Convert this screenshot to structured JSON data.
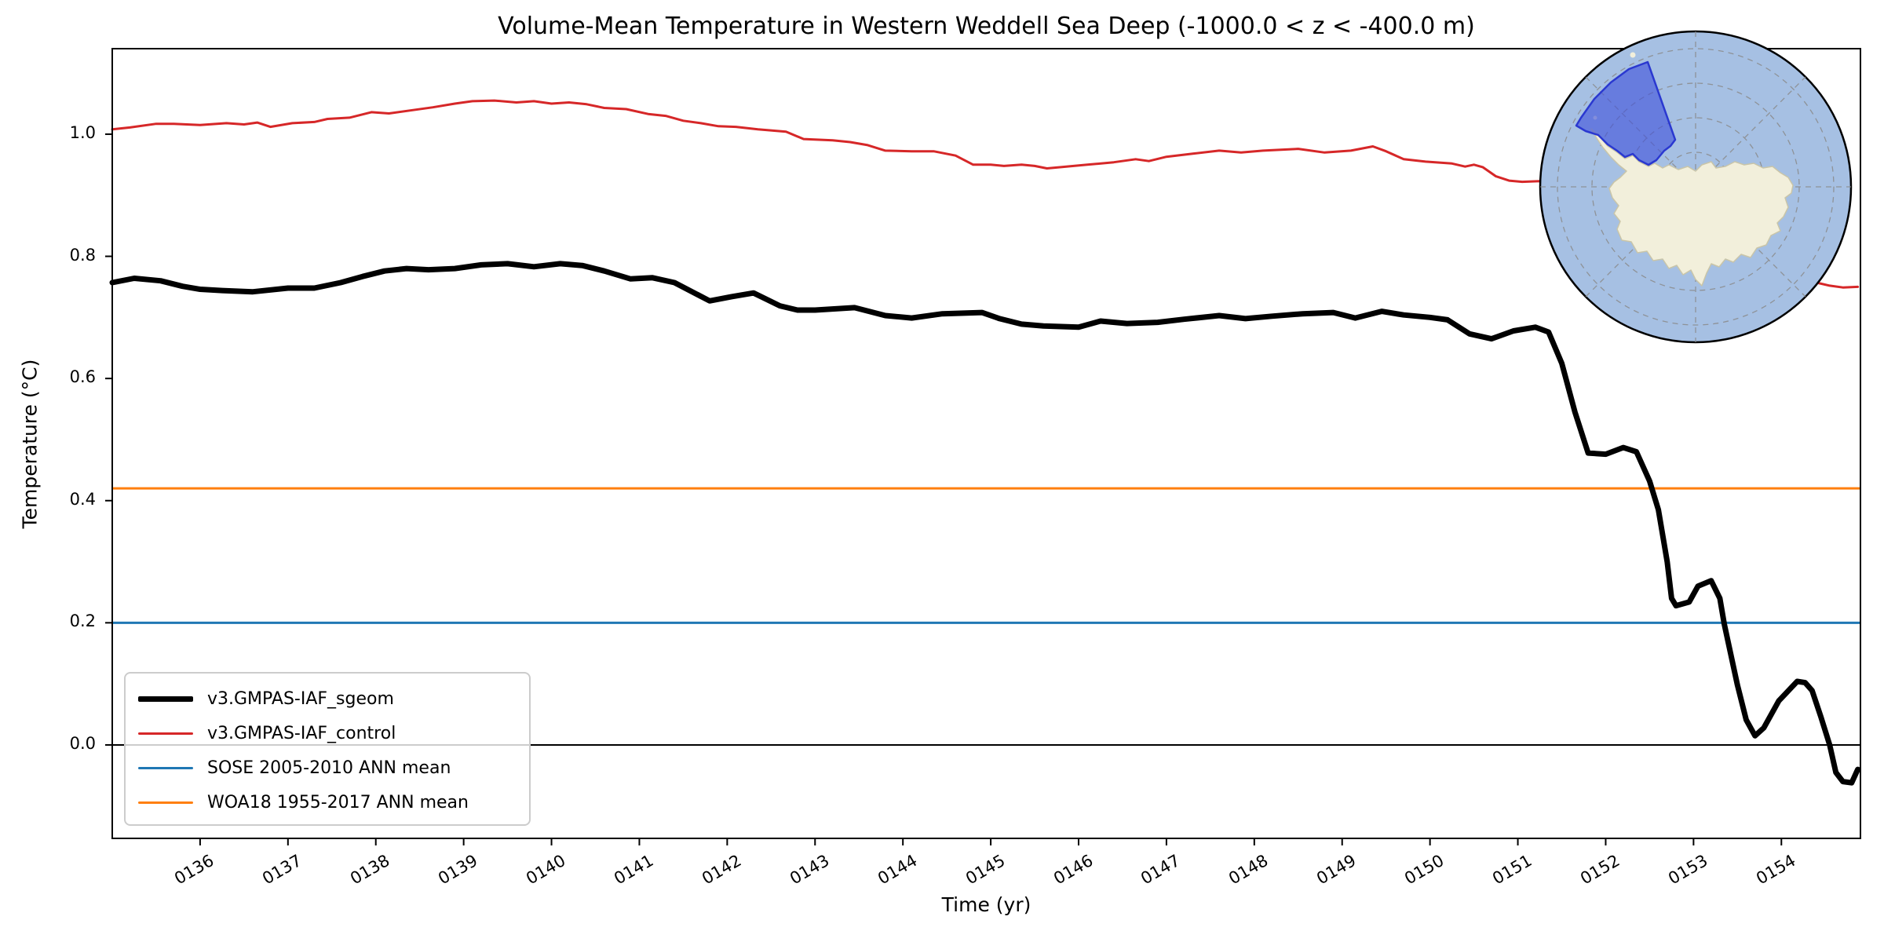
{
  "title": "Volume-Mean Temperature in Western Weddell Sea Deep (-1000.0 < z < -400.0 m)",
  "axes": {
    "xlabel": "Time (yr)",
    "ylabel": "Temperature (°C)",
    "xlim": [
      135.0,
      154.9
    ],
    "ylim": [
      -0.153,
      1.14
    ],
    "xtick_values": [
      136,
      137,
      138,
      139,
      140,
      141,
      142,
      143,
      144,
      145,
      146,
      147,
      148,
      149,
      150,
      151,
      152,
      153,
      154
    ],
    "xtick_labels": [
      "0136",
      "0137",
      "0138",
      "0139",
      "0140",
      "0141",
      "0142",
      "0143",
      "0144",
      "0145",
      "0146",
      "0147",
      "0148",
      "0149",
      "0150",
      "0151",
      "0152",
      "0153",
      "0154"
    ],
    "ytick_values": [
      0.0,
      0.2,
      0.4,
      0.6,
      0.8,
      1.0
    ],
    "ytick_labels": [
      "0.0",
      "0.2",
      "0.4",
      "0.6",
      "0.8",
      "1.0"
    ],
    "grid": false
  },
  "chart_data": {
    "type": "line",
    "title": "Volume-Mean Temperature in Western Weddell Sea Deep (-1000.0 < z < -400.0 m)",
    "xlabel": "Time (yr)",
    "ylabel": "Temperature (°C)",
    "xlim": [
      135.0,
      154.9
    ],
    "ylim": [
      -0.153,
      1.14
    ],
    "legend_position": "lower left",
    "series": [
      {
        "name": "v3.GMPAS-IAF_sgeom",
        "color": "#000000",
        "width": 7,
        "x": [
          135.0,
          135.25,
          135.55,
          135.8,
          136.0,
          136.25,
          136.6,
          137.0,
          137.3,
          137.6,
          137.85,
          138.1,
          138.35,
          138.6,
          138.9,
          139.2,
          139.5,
          139.8,
          140.1,
          140.35,
          140.6,
          140.9,
          141.15,
          141.4,
          141.8,
          142.05,
          142.3,
          142.6,
          142.8,
          143.0,
          143.45,
          143.8,
          144.1,
          144.45,
          144.9,
          145.1,
          145.35,
          145.6,
          146.0,
          146.25,
          146.55,
          146.9,
          147.2,
          147.6,
          147.9,
          148.2,
          148.55,
          148.9,
          149.15,
          149.45,
          149.7,
          150.0,
          150.2,
          150.45,
          150.7,
          150.95,
          151.2,
          151.35,
          151.5,
          151.65,
          151.8,
          152.0,
          152.2,
          152.35,
          152.5,
          152.6,
          152.7,
          152.75,
          152.8,
          152.95,
          153.05,
          153.2,
          153.3,
          153.35,
          153.5,
          153.6,
          153.7,
          153.8,
          153.97,
          154.18,
          154.27,
          154.35,
          154.45,
          154.55,
          154.62,
          154.7,
          154.8,
          154.87
        ],
        "y": [
          0.757,
          0.764,
          0.76,
          0.751,
          0.746,
          0.744,
          0.742,
          0.748,
          0.748,
          0.757,
          0.767,
          0.776,
          0.78,
          0.778,
          0.78,
          0.786,
          0.788,
          0.783,
          0.788,
          0.785,
          0.776,
          0.763,
          0.765,
          0.757,
          0.727,
          0.734,
          0.74,
          0.719,
          0.712,
          0.712,
          0.716,
          0.703,
          0.699,
          0.706,
          0.708,
          0.698,
          0.689,
          0.686,
          0.684,
          0.694,
          0.69,
          0.692,
          0.697,
          0.703,
          0.698,
          0.702,
          0.706,
          0.708,
          0.699,
          0.71,
          0.704,
          0.7,
          0.696,
          0.673,
          0.665,
          0.678,
          0.684,
          0.676,
          0.625,
          0.545,
          0.478,
          0.476,
          0.487,
          0.48,
          0.432,
          0.385,
          0.3,
          0.24,
          0.228,
          0.234,
          0.26,
          0.269,
          0.24,
          0.198,
          0.098,
          0.041,
          0.015,
          0.028,
          0.072,
          0.104,
          0.102,
          0.089,
          0.046,
          0.0,
          -0.045,
          -0.06,
          -0.062,
          -0.04
        ]
      },
      {
        "name": "v3.GMPAS-IAF_control",
        "color": "#d62728",
        "width": 3,
        "x": [
          135.0,
          135.2,
          135.5,
          135.7,
          136.0,
          136.3,
          136.5,
          136.65,
          136.8,
          137.05,
          137.3,
          137.45,
          137.7,
          137.95,
          138.15,
          138.45,
          138.65,
          138.9,
          139.1,
          139.35,
          139.6,
          139.8,
          140.0,
          140.2,
          140.4,
          140.6,
          140.85,
          141.1,
          141.3,
          141.5,
          141.7,
          141.9,
          142.1,
          142.35,
          142.67,
          142.87,
          143.2,
          143.4,
          143.6,
          143.8,
          144.1,
          144.35,
          144.6,
          144.8,
          145.0,
          145.15,
          145.35,
          145.5,
          145.64,
          145.8,
          146.1,
          146.4,
          146.65,
          146.8,
          147.0,
          147.3,
          147.6,
          147.85,
          148.1,
          148.5,
          148.8,
          149.1,
          149.35,
          149.5,
          149.7,
          149.95,
          150.25,
          150.4,
          150.5,
          150.6,
          150.75,
          150.9,
          151.05,
          151.25,
          151.6,
          152.0,
          152.5,
          153.0,
          153.5,
          153.9,
          154.2,
          154.4,
          154.55,
          154.7,
          154.87
        ],
        "y": [
          1.008,
          1.011,
          1.017,
          1.017,
          1.015,
          1.018,
          1.016,
          1.019,
          1.012,
          1.018,
          1.02,
          1.025,
          1.027,
          1.036,
          1.034,
          1.04,
          1.044,
          1.05,
          1.054,
          1.055,
          1.052,
          1.054,
          1.05,
          1.052,
          1.049,
          1.043,
          1.041,
          1.033,
          1.03,
          1.022,
          1.018,
          1.013,
          1.012,
          1.008,
          1.004,
          0.992,
          0.99,
          0.987,
          0.982,
          0.973,
          0.972,
          0.972,
          0.965,
          0.95,
          0.95,
          0.948,
          0.95,
          0.948,
          0.944,
          0.946,
          0.95,
          0.954,
          0.959,
          0.956,
          0.963,
          0.968,
          0.973,
          0.97,
          0.973,
          0.976,
          0.97,
          0.973,
          0.98,
          0.972,
          0.959,
          0.955,
          0.952,
          0.947,
          0.95,
          0.946,
          0.931,
          0.924,
          0.922,
          0.923,
          0.912,
          0.888,
          0.86,
          0.832,
          0.8,
          0.775,
          0.762,
          0.757,
          0.752,
          0.749,
          0.75
        ]
      }
    ],
    "ref_lines": [
      {
        "name": "SOSE 2005-2010 ANN mean",
        "value": 0.2,
        "color": "#1f77b4",
        "width": 3
      },
      {
        "name": "WOA18 1955-2017 ANN mean",
        "value": 0.42,
        "color": "#ff7f0e",
        "width": 3
      },
      {
        "name": "zero-line",
        "value": 0.0,
        "color": "#000000",
        "width": 2
      }
    ]
  },
  "legend": {
    "entries": [
      {
        "label": "v3.GMPAS-IAF_sgeom",
        "color": "#000000",
        "thickness": 7
      },
      {
        "label": "v3.GMPAS-IAF_control",
        "color": "#d62728",
        "thickness": 3
      },
      {
        "label": "SOSE 2005-2010 ANN mean",
        "color": "#1f77b4",
        "thickness": 3
      },
      {
        "label": "WOA18 1955-2017 ANN mean",
        "color": "#ff7f0e",
        "thickness": 3
      }
    ]
  },
  "inset_map": {
    "description": "south-polar-stereographic-map",
    "ocean_color": "#a6c0e3",
    "land_color": "#f2efdb",
    "region_fill": "rgba(64,82,220,0.62)",
    "region_border": "#2a38d0",
    "graticule_color": "#8a8a8a",
    "border_color": "#000000"
  }
}
